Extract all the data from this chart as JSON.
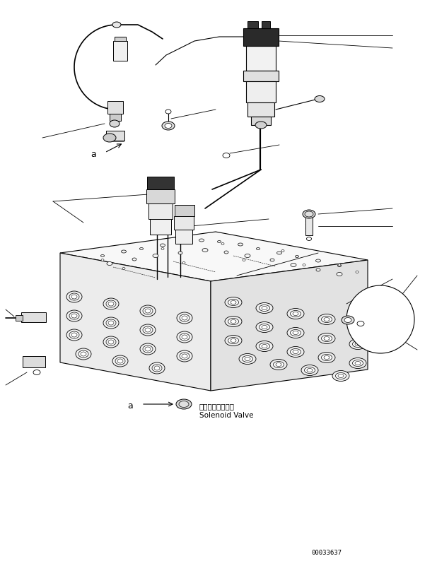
{
  "bg_color": "#ffffff",
  "line_color": "#000000",
  "fig_width": 6.18,
  "fig_height": 7.94,
  "dpi": 100,
  "label_japanese": "ソレノイドバルブ",
  "label_english": "Solenoid Valve",
  "label_a": "a",
  "part_number": "00033637",
  "font_size_label": 7.5,
  "font_size_small": 6.5
}
